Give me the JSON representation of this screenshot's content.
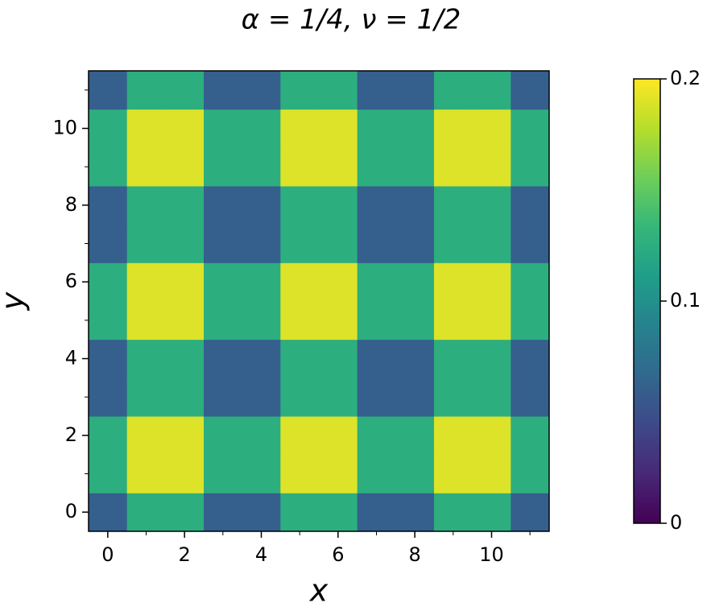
{
  "chart_data": {
    "type": "heatmap",
    "title": "α = 1/4, ν = 1/2",
    "x_label": "x",
    "y_label": "y",
    "x": [
      0,
      1,
      2,
      3,
      4,
      5,
      6,
      7,
      8,
      9,
      10,
      11
    ],
    "y": [
      0,
      1,
      2,
      3,
      4,
      5,
      6,
      7,
      8,
      9,
      10,
      11
    ],
    "values": [
      [
        0.06,
        0.125,
        0.125,
        0.06,
        0.06,
        0.125,
        0.125,
        0.06,
        0.06,
        0.125,
        0.125,
        0.06
      ],
      [
        0.125,
        0.19,
        0.19,
        0.125,
        0.125,
        0.19,
        0.19,
        0.125,
        0.125,
        0.19,
        0.19,
        0.125
      ],
      [
        0.125,
        0.19,
        0.19,
        0.125,
        0.125,
        0.19,
        0.19,
        0.125,
        0.125,
        0.19,
        0.19,
        0.125
      ],
      [
        0.06,
        0.125,
        0.125,
        0.06,
        0.06,
        0.125,
        0.125,
        0.06,
        0.06,
        0.125,
        0.125,
        0.06
      ],
      [
        0.06,
        0.125,
        0.125,
        0.06,
        0.06,
        0.125,
        0.125,
        0.06,
        0.06,
        0.125,
        0.125,
        0.06
      ],
      [
        0.125,
        0.19,
        0.19,
        0.125,
        0.125,
        0.19,
        0.19,
        0.125,
        0.125,
        0.19,
        0.19,
        0.125
      ],
      [
        0.125,
        0.19,
        0.19,
        0.125,
        0.125,
        0.19,
        0.19,
        0.125,
        0.125,
        0.19,
        0.19,
        0.125
      ],
      [
        0.06,
        0.125,
        0.125,
        0.06,
        0.06,
        0.125,
        0.125,
        0.06,
        0.06,
        0.125,
        0.125,
        0.06
      ],
      [
        0.06,
        0.125,
        0.125,
        0.06,
        0.06,
        0.125,
        0.125,
        0.06,
        0.06,
        0.125,
        0.125,
        0.06
      ],
      [
        0.125,
        0.19,
        0.19,
        0.125,
        0.125,
        0.19,
        0.19,
        0.125,
        0.125,
        0.19,
        0.19,
        0.125
      ],
      [
        0.125,
        0.19,
        0.19,
        0.125,
        0.125,
        0.19,
        0.19,
        0.125,
        0.125,
        0.19,
        0.19,
        0.125
      ],
      [
        0.06,
        0.125,
        0.125,
        0.06,
        0.06,
        0.125,
        0.125,
        0.06,
        0.06,
        0.125,
        0.125,
        0.06
      ]
    ],
    "xlim": [
      -0.5,
      11.5
    ],
    "ylim": [
      -0.5,
      11.5
    ],
    "xticks": [
      0,
      2,
      4,
      6,
      8,
      10
    ],
    "yticks": [
      0,
      2,
      4,
      6,
      8,
      10
    ],
    "xminorticks": [
      1,
      3,
      5,
      7,
      9,
      11
    ],
    "yminorticks": [
      1,
      3,
      5,
      7,
      9,
      11
    ],
    "colormap": "viridis",
    "zlim": [
      0,
      0.2
    ],
    "colorbar_ticks": [
      0,
      0.1,
      0.2
    ]
  }
}
